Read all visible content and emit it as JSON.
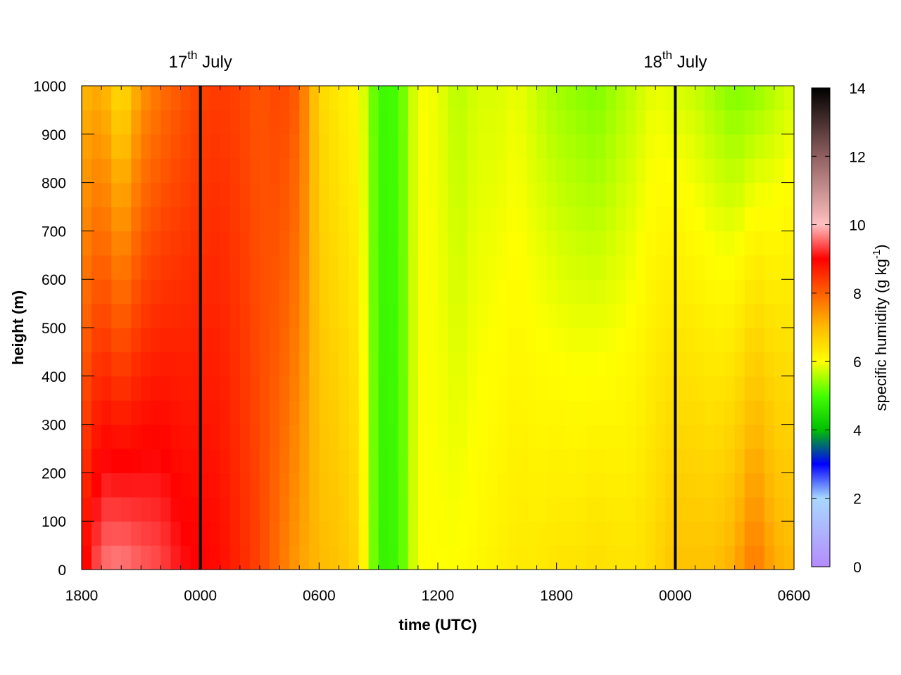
{
  "chart_data": {
    "type": "heatmap",
    "title": "",
    "xlabel": "time (UTC)",
    "ylabel": "height (m)",
    "x_ticks": [
      "1800",
      "0000",
      "0600",
      "1200",
      "1800",
      "0000",
      "0600"
    ],
    "x_range_hours": [
      0,
      36
    ],
    "y_ticks": [
      0,
      100,
      200,
      300,
      400,
      500,
      600,
      700,
      800,
      900,
      1000
    ],
    "ylim": [
      0,
      1000
    ],
    "colorbar": {
      "label_main": "specific humidity (g kg",
      "label_sup": "-1",
      "label_close": ")",
      "range": [
        0,
        14
      ],
      "ticks": [
        0,
        2,
        4,
        6,
        8,
        10,
        12,
        14
      ],
      "stops": [
        {
          "v": 0,
          "color": "#b48cff"
        },
        {
          "v": 2,
          "color": "#a8d8ff"
        },
        {
          "v": 3,
          "color": "#0000ff"
        },
        {
          "v": 4,
          "color": "#00c000"
        },
        {
          "v": 5,
          "color": "#44ff00"
        },
        {
          "v": 6,
          "color": "#ffff00"
        },
        {
          "v": 7,
          "color": "#ffbb00"
        },
        {
          "v": 8,
          "color": "#ff6000"
        },
        {
          "v": 9,
          "color": "#ff0000"
        },
        {
          "v": 10,
          "color": "#ffc0c0"
        },
        {
          "v": 12,
          "color": "#906060"
        },
        {
          "v": 14,
          "color": "#000000"
        }
      ]
    },
    "date_markers": [
      {
        "hour": 6,
        "day": "17",
        "suffix": "th",
        "month": "July"
      },
      {
        "hour": 30,
        "day": "18",
        "suffix": "th",
        "month": "July"
      }
    ],
    "grid_hours_per_column": 0.5,
    "grid_rows": 20,
    "column_profiles_gkg": [
      {
        "hour": 0.0,
        "bottom": 8.8,
        "top": 7.0
      },
      {
        "hour": 1.0,
        "bottom": 9.6,
        "top": 7.2
      },
      {
        "hour": 2.0,
        "bottom": 9.7,
        "top": 6.4
      },
      {
        "hour": 3.0,
        "bottom": 9.5,
        "top": 7.4
      },
      {
        "hour": 4.0,
        "bottom": 9.4,
        "top": 7.8
      },
      {
        "hour": 5.0,
        "bottom": 9.1,
        "top": 8.1
      },
      {
        "hour": 6.0,
        "bottom": 9.0,
        "top": 8.3
      },
      {
        "hour": 7.0,
        "bottom": 8.9,
        "top": 8.4
      },
      {
        "hour": 8.0,
        "bottom": 8.6,
        "top": 8.3
      },
      {
        "hour": 9.0,
        "bottom": 8.3,
        "top": 8.1
      },
      {
        "hour": 10.0,
        "bottom": 7.8,
        "top": 8.3
      },
      {
        "hour": 11.0,
        "bottom": 7.3,
        "top": 8.0
      },
      {
        "hour": 12.0,
        "bottom": 7.0,
        "top": 6.6
      },
      {
        "hour": 13.0,
        "bottom": 6.9,
        "top": 6.3
      },
      {
        "hour": 14.0,
        "bottom": 6.6,
        "top": 6.1
      },
      {
        "hour": 15.0,
        "bottom": 4.8,
        "top": 4.9
      },
      {
        "hour": 16.0,
        "bottom": 4.9,
        "top": 5.0
      },
      {
        "hour": 17.0,
        "bottom": 6.0,
        "top": 6.0
      },
      {
        "hour": 18.0,
        "bottom": 6.0,
        "top": 5.9
      },
      {
        "hour": 19.0,
        "bottom": 6.0,
        "top": 5.6
      },
      {
        "hour": 20.0,
        "bottom": 6.1,
        "top": 5.8
      },
      {
        "hour": 21.0,
        "bottom": 6.2,
        "top": 5.8
      },
      {
        "hour": 22.0,
        "bottom": 6.3,
        "top": 5.9
      },
      {
        "hour": 23.0,
        "bottom": 6.3,
        "top": 5.7
      },
      {
        "hour": 24.0,
        "bottom": 6.4,
        "top": 5.5
      },
      {
        "hour": 25.0,
        "bottom": 6.4,
        "top": 5.4
      },
      {
        "hour": 26.0,
        "bottom": 6.5,
        "top": 5.3
      },
      {
        "hour": 27.0,
        "bottom": 6.4,
        "top": 5.5
      },
      {
        "hour": 28.0,
        "bottom": 6.4,
        "top": 5.7
      },
      {
        "hour": 29.0,
        "bottom": 6.6,
        "top": 5.9
      },
      {
        "hour": 30.0,
        "bottom": 6.9,
        "top": 5.8
      },
      {
        "hour": 31.0,
        "bottom": 6.9,
        "top": 5.7
      },
      {
        "hour": 32.0,
        "bottom": 6.9,
        "top": 5.5
      },
      {
        "hour": 33.0,
        "bottom": 7.2,
        "top": 5.3
      },
      {
        "hour": 34.0,
        "bottom": 7.8,
        "top": 5.4
      },
      {
        "hour": 35.0,
        "bottom": 7.2,
        "top": 5.6
      },
      {
        "hour": 36.0,
        "bottom": 7.0,
        "top": 5.8
      }
    ]
  }
}
